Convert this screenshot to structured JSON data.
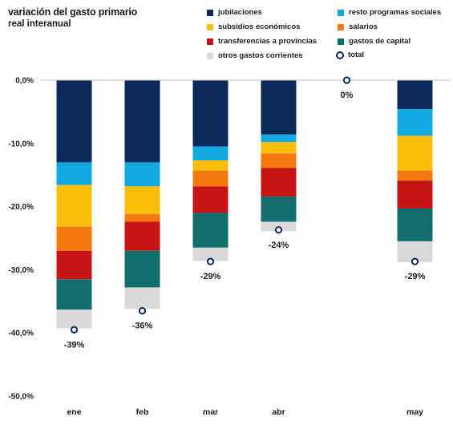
{
  "chart_data": {
    "type": "bar",
    "stacked": true,
    "title": "variación del gasto primario",
    "subtitle": "real interanual",
    "categories": [
      "ene",
      "feb",
      "mar",
      "abr",
      "may"
    ],
    "ylim": [
      -50,
      0
    ],
    "y_ticks": [
      {
        "value": 0,
        "label": "0,0%"
      },
      {
        "value": -10,
        "label": "-10,0%"
      },
      {
        "value": -20,
        "label": "-20,0%"
      },
      {
        "value": -30,
        "label": "-30,0%"
      },
      {
        "value": -40,
        "label": "-40,0%"
      },
      {
        "value": -50,
        "label": "-50,0%"
      }
    ],
    "grid": false,
    "legend_position": "top-right",
    "series": [
      {
        "name": "jubilaciones",
        "color": "#0b2a5b",
        "values": [
          -13.0,
          -13.0,
          -10.5,
          -8.6,
          -4.6
        ]
      },
      {
        "name": "resto programas sociales",
        "color": "#12a8e0",
        "values": [
          -3.6,
          -3.8,
          -2.2,
          -1.2,
          -4.2
        ]
      },
      {
        "name": "subsidios económicos",
        "color": "#fbbf0b",
        "values": [
          -6.6,
          -4.4,
          -1.6,
          -1.8,
          -5.5
        ]
      },
      {
        "name": "salarios",
        "color": "#f47a10",
        "values": [
          -3.8,
          -1.2,
          -2.5,
          -2.3,
          -1.6
        ]
      },
      {
        "name": "transferencias a provincias",
        "color": "#c81414",
        "values": [
          -4.5,
          -4.6,
          -4.2,
          -4.5,
          -4.4
        ]
      },
      {
        "name": "gastos de capital",
        "color": "#126e6c",
        "values": [
          -4.8,
          -5.8,
          -5.5,
          -4.0,
          -5.2
        ]
      },
      {
        "name": "otros gastos corrientes",
        "color": "#d9d9d9",
        "values": [
          -3.0,
          -3.4,
          -2.1,
          -1.5,
          -3.3
        ]
      }
    ],
    "total": {
      "name": "total",
      "values": [
        -39.5,
        -36.5,
        -28.7,
        -23.7,
        -28.7
      ],
      "labels": [
        "-39%",
        "-36%",
        "-29%",
        "-24%",
        "-29%"
      ],
      "extra_point": {
        "x_position": 4.0,
        "value": 0,
        "label": "0%"
      }
    }
  },
  "legend": [
    {
      "label": "jubilaciones",
      "color": "#0b2a5b",
      "kind": "swatch"
    },
    {
      "label": "resto programas sociales",
      "color": "#12a8e0",
      "kind": "swatch"
    },
    {
      "label": "subsidios económicos",
      "color": "#fbbf0b",
      "kind": "swatch"
    },
    {
      "label": "salarios",
      "color": "#f47a10",
      "kind": "swatch"
    },
    {
      "label": "transferencias a provincias",
      "color": "#c81414",
      "kind": "swatch"
    },
    {
      "label": "gastos de capital",
      "color": "#126e6c",
      "kind": "swatch"
    },
    {
      "label": "otros gastos corrientes",
      "color": "#d9d9d9",
      "kind": "swatch"
    },
    {
      "label": "total",
      "color": "#0b2a5b",
      "kind": "marker"
    }
  ]
}
